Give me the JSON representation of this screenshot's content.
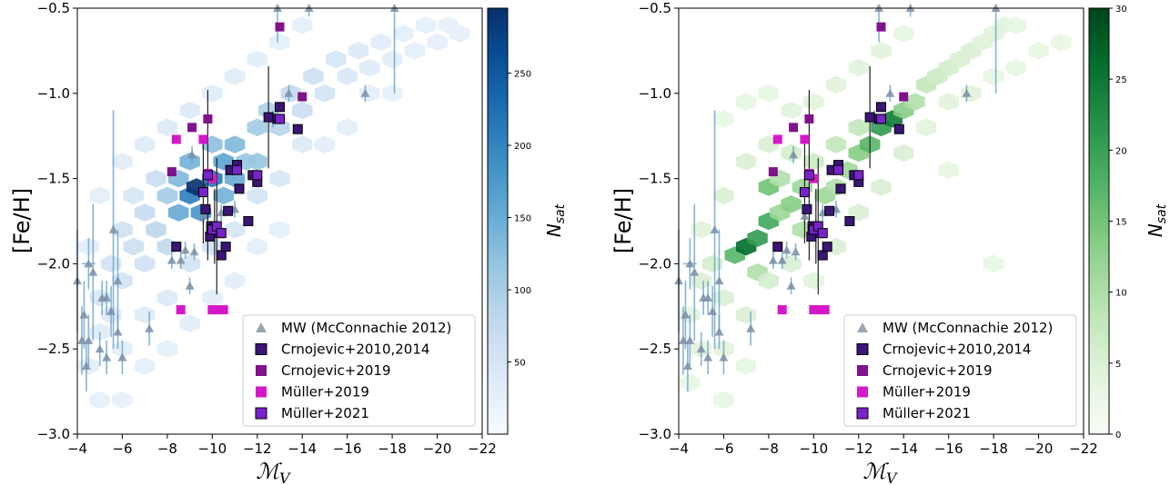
{
  "chart_data": [
    {
      "type": "scatter",
      "xlabel": "ℳ_V",
      "ylabel": "[Fe/H]",
      "xlim": [
        -4,
        -22
      ],
      "ylim": [
        -3.0,
        -0.5
      ],
      "x_ticks": [
        -4,
        -6,
        -8,
        -10,
        -12,
        -14,
        -16,
        -18,
        -20,
        -22
      ],
      "x_tick_labels": [
        "−4",
        "−6",
        "−8",
        "−10",
        "−12",
        "−14",
        "−16",
        "−18",
        "−20",
        "−22"
      ],
      "y_ticks": [
        -3.0,
        -2.5,
        -2.0,
        -1.5,
        -1.0,
        -0.5
      ],
      "y_tick_labels": [
        "−3.0",
        "−2.5",
        "−2.0",
        "−1.5",
        "−1.0",
        "−0.5"
      ],
      "colorbar": {
        "label": "N_sat",
        "colormap": "Blues",
        "range": [
          0,
          295
        ],
        "ticks": [
          50,
          100,
          150,
          200,
          250
        ],
        "tick_labels": [
          "50",
          "100",
          "150",
          "200",
          "250"
        ]
      },
      "legend": {
        "placement": "lower right",
        "entries": [
          "MW (McConnachie 2012)",
          "Crnojevic+2010,2014",
          "Crnojevic+2019",
          "Müller+2019",
          "Müller+2021"
        ]
      },
      "grid": false
    },
    {
      "type": "scatter",
      "xlabel": "ℳ_V",
      "ylabel": "[Fe/H]",
      "xlim": [
        -4,
        -22
      ],
      "ylim": [
        -3.0,
        -0.5
      ],
      "x_ticks": [
        -4,
        -6,
        -8,
        -10,
        -12,
        -14,
        -16,
        -18,
        -20,
        -22
      ],
      "x_tick_labels": [
        "−4",
        "−6",
        "−8",
        "−10",
        "−12",
        "−14",
        "−16",
        "−18",
        "−20",
        "−22"
      ],
      "y_ticks": [
        -3.0,
        -2.5,
        -2.0,
        -1.5,
        -1.0,
        -0.5
      ],
      "y_tick_labels": [
        "−3.0",
        "−2.5",
        "−2.0",
        "−1.5",
        "−1.0",
        "−0.5"
      ],
      "colorbar": {
        "label": "N_sat",
        "colormap": "Greens",
        "range": [
          0,
          30
        ],
        "ticks": [
          0,
          5,
          10,
          15,
          20,
          25,
          30
        ],
        "tick_labels": [
          "0",
          "5",
          "10",
          "15",
          "20",
          "25",
          "30"
        ]
      },
      "legend": {
        "placement": "lower right",
        "entries": [
          "MW (McConnachie 2012)",
          "Crnojevic+2010,2014",
          "Crnojevic+2019",
          "Müller+2019",
          "Müller+2021"
        ]
      },
      "grid": false
    }
  ],
  "series_styles": {
    "mw": {
      "marker": "triangle",
      "color": "#7a8fa6",
      "errorbar_color": "#6aa2cc"
    },
    "crnojevic2010": {
      "marker": "square",
      "color": "#3b1577"
    },
    "crnojevic2019": {
      "marker": "square",
      "color": "#80128a"
    },
    "muller2019": {
      "marker": "square",
      "color": "#d418c9"
    },
    "muller2021": {
      "marker": "square",
      "color": "#7a22cc"
    }
  },
  "series": {
    "mw": [
      {
        "x": -4.0,
        "y": -2.1,
        "ye": 0.3
      },
      {
        "x": -4.2,
        "y": -2.45,
        "ye": 0.2
      },
      {
        "x": -4.4,
        "y": -2.6,
        "ye": 0.15
      },
      {
        "x": -4.3,
        "y": -2.3,
        "ye": 0.2
      },
      {
        "x": -4.5,
        "y": -2.45,
        "ye": 0.15
      },
      {
        "x": -4.5,
        "y": -2.0,
        "ye": 0.15,
        "xe": 0.3
      },
      {
        "x": -4.7,
        "y": -2.05,
        "ye": 0.4
      },
      {
        "x": -5.0,
        "y": -2.5,
        "ye": 0.1
      },
      {
        "x": -5.1,
        "y": -2.2,
        "ye": 0.1
      },
      {
        "x": -5.3,
        "y": -2.55,
        "ye": 0.1
      },
      {
        "x": -5.3,
        "y": -2.2,
        "ye": 0.1
      },
      {
        "x": -5.5,
        "y": -2.28,
        "ye": 0.15
      },
      {
        "x": -5.6,
        "y": -1.8,
        "ye": 0.7
      },
      {
        "x": -5.8,
        "y": -2.1,
        "ye": 0.3
      },
      {
        "x": -5.8,
        "y": -2.4,
        "ye": 0.1
      },
      {
        "x": -6.0,
        "y": -2.55,
        "ye": 0.1
      },
      {
        "x": -7.2,
        "y": -2.38,
        "ye": 0.1
      },
      {
        "x": -8.2,
        "y": -1.98,
        "ye": 0.05
      },
      {
        "x": -8.6,
        "y": -1.98,
        "ye": 0.05
      },
      {
        "x": -8.8,
        "y": -1.92,
        "ye": 0.05
      },
      {
        "x": -9.0,
        "y": -2.13,
        "ye": 0.05
      },
      {
        "x": -9.1,
        "y": -1.36,
        "ye": 0.05
      },
      {
        "x": -9.2,
        "y": -1.93,
        "ye": 0.05
      },
      {
        "x": -9.6,
        "y": -1.72,
        "ye": 0.05
      },
      {
        "x": -10.4,
        "y": -1.7,
        "ye": 0.05
      },
      {
        "x": -11.0,
        "y": -1.68,
        "ye": 0.05
      },
      {
        "x": -12.7,
        "y": -1.15,
        "ye": 0.05
      },
      {
        "x": -13.4,
        "y": -1.0,
        "ye": 0.05
      },
      {
        "x": -14.3,
        "y": -0.5,
        "ye": 0.05
      },
      {
        "x": -16.8,
        "y": -1.0,
        "ye": 0.05
      },
      {
        "x": -18.1,
        "y": -0.5,
        "ye": 0.5
      },
      {
        "x": -12.9,
        "y": -0.5,
        "ye": 0.2
      }
    ],
    "crnojevic2010": [
      {
        "x": -8.4,
        "y": -1.9
      },
      {
        "x": -9.7,
        "y": -1.68
      },
      {
        "x": -9.9,
        "y": -1.84
      },
      {
        "x": -9.95,
        "y": -1.78
      },
      {
        "x": -10.1,
        "y": -1.78,
        "ye": 0.22
      },
      {
        "x": -10.3,
        "y": -1.82
      },
      {
        "x": -10.4,
        "y": -1.95
      },
      {
        "x": -10.6,
        "y": -1.9
      },
      {
        "x": -10.7,
        "y": -1.69
      },
      {
        "x": -10.8,
        "y": -1.45
      },
      {
        "x": -11.1,
        "y": -1.42
      },
      {
        "x": -11.2,
        "y": -1.56
      },
      {
        "x": -11.6,
        "y": -1.75
      },
      {
        "x": -11.8,
        "y": -1.48
      },
      {
        "x": -12.0,
        "y": -1.52
      },
      {
        "x": -12.5,
        "y": -1.14,
        "ye": 0.3
      },
      {
        "x": -12.9,
        "y": -1.15
      },
      {
        "x": -13.0,
        "y": -1.08
      },
      {
        "x": -13.8,
        "y": -1.21
      }
    ],
    "crnojevic2019": [
      {
        "x": -8.2,
        "y": -1.46
      },
      {
        "x": -9.1,
        "y": -1.2
      },
      {
        "x": -9.8,
        "y": -1.15
      },
      {
        "x": -13.0,
        "y": -0.61
      },
      {
        "x": -14.0,
        "y": -1.02
      }
    ],
    "muller2019": [
      {
        "x": -8.4,
        "y": -1.27
      },
      {
        "x": -8.6,
        "y": -2.27
      },
      {
        "x": -9.6,
        "y": -1.27
      },
      {
        "x": -10.0,
        "y": -2.27
      },
      {
        "x": -10.2,
        "y": -2.27
      },
      {
        "x": -10.5,
        "y": -2.27
      },
      {
        "x": -9.8,
        "y": -1.47
      },
      {
        "x": -10.0,
        "y": -1.5
      }
    ],
    "muller2021": [
      {
        "x": -9.6,
        "y": -1.58,
        "ye": 0.3
      },
      {
        "x": -9.8,
        "y": -1.48,
        "ye": 0.5
      },
      {
        "x": -10.0,
        "y": -1.8
      },
      {
        "x": -10.2,
        "y": -1.78,
        "ye": 0.4
      },
      {
        "x": -10.4,
        "y": -1.82
      },
      {
        "x": -11.1,
        "y": -1.45
      },
      {
        "x": -12.0,
        "y": -1.48
      },
      {
        "x": -13.0,
        "y": -1.15
      }
    ]
  },
  "density": {
    "blue": [
      {
        "x": -4.5,
        "y": -2.6,
        "v": 10
      },
      {
        "x": -5.0,
        "y": -2.4,
        "v": 15
      },
      {
        "x": -5.0,
        "y": -2.2,
        "v": 25
      },
      {
        "x": -5.5,
        "y": -2.0,
        "v": 35
      },
      {
        "x": -5.5,
        "y": -2.3,
        "v": 20
      },
      {
        "x": -6.0,
        "y": -1.8,
        "v": 40
      },
      {
        "x": -6.0,
        "y": -2.1,
        "v": 35
      },
      {
        "x": -6.5,
        "y": -1.9,
        "v": 45
      },
      {
        "x": -6.5,
        "y": -1.6,
        "v": 30
      },
      {
        "x": -7.0,
        "y": -1.7,
        "v": 55
      },
      {
        "x": -7.0,
        "y": -2.0,
        "v": 40
      },
      {
        "x": -7.5,
        "y": -1.5,
        "v": 50
      },
      {
        "x": -7.5,
        "y": -1.8,
        "v": 65
      },
      {
        "x": -8.0,
        "y": -1.6,
        "v": 90
      },
      {
        "x": -8.0,
        "y": -1.9,
        "v": 60
      },
      {
        "x": -8.5,
        "y": -1.5,
        "v": 120
      },
      {
        "x": -8.5,
        "y": -1.7,
        "v": 140
      },
      {
        "x": -9.0,
        "y": -1.6,
        "v": 200
      },
      {
        "x": -9.0,
        "y": -1.4,
        "v": 130
      },
      {
        "x": -9.3,
        "y": -1.55,
        "v": 295
      },
      {
        "x": -9.5,
        "y": -1.7,
        "v": 170
      },
      {
        "x": -10.0,
        "y": -1.5,
        "v": 210
      },
      {
        "x": -10.0,
        "y": -1.3,
        "v": 110
      },
      {
        "x": -10.5,
        "y": -1.4,
        "v": 150
      },
      {
        "x": -10.5,
        "y": -1.6,
        "v": 130
      },
      {
        "x": -11.0,
        "y": -1.3,
        "v": 120
      },
      {
        "x": -11.0,
        "y": -1.5,
        "v": 140
      },
      {
        "x": -11.5,
        "y": -1.4,
        "v": 100
      },
      {
        "x": -12.0,
        "y": -1.2,
        "v": 90
      },
      {
        "x": -12.0,
        "y": -1.4,
        "v": 100
      },
      {
        "x": -12.5,
        "y": -1.1,
        "v": 80
      },
      {
        "x": -13.0,
        "y": -1.2,
        "v": 70
      },
      {
        "x": -13.5,
        "y": -1.0,
        "v": 60
      },
      {
        "x": -14.0,
        "y": -1.1,
        "v": 50
      },
      {
        "x": -14.5,
        "y": -0.9,
        "v": 45
      },
      {
        "x": -15.0,
        "y": -1.0,
        "v": 35
      },
      {
        "x": -15.5,
        "y": -0.8,
        "v": 30
      },
      {
        "x": -16.0,
        "y": -0.9,
        "v": 25
      },
      {
        "x": -16.5,
        "y": -0.75,
        "v": 20
      },
      {
        "x": -17.0,
        "y": -0.85,
        "v": 15
      },
      {
        "x": -17.5,
        "y": -0.7,
        "v": 12
      },
      {
        "x": -18.0,
        "y": -0.8,
        "v": 10
      },
      {
        "x": -18.5,
        "y": -0.65,
        "v": 8
      },
      {
        "x": -19.0,
        "y": -0.75,
        "v": 6
      },
      {
        "x": -19.5,
        "y": -0.6,
        "v": 5
      },
      {
        "x": -20.0,
        "y": -0.7,
        "v": 4
      },
      {
        "x": -20.5,
        "y": -0.6,
        "v": 3
      },
      {
        "x": -21.0,
        "y": -0.65,
        "v": 2
      },
      {
        "x": -6.0,
        "y": -2.5,
        "v": 10
      },
      {
        "x": -7.0,
        "y": -2.3,
        "v": 15
      },
      {
        "x": -8.0,
        "y": -2.2,
        "v": 20
      },
      {
        "x": -9.0,
        "y": -2.0,
        "v": 35
      },
      {
        "x": -10.0,
        "y": -1.9,
        "v": 40
      },
      {
        "x": -11.0,
        "y": -1.8,
        "v": 30
      },
      {
        "x": -12.0,
        "y": -1.6,
        "v": 35
      },
      {
        "x": -13.0,
        "y": -1.5,
        "v": 25
      },
      {
        "x": -14.0,
        "y": -1.3,
        "v": 20
      },
      {
        "x": -6.0,
        "y": -1.4,
        "v": 12
      },
      {
        "x": -7.0,
        "y": -1.3,
        "v": 15
      },
      {
        "x": -8.0,
        "y": -1.2,
        "v": 20
      },
      {
        "x": -9.0,
        "y": -1.1,
        "v": 18
      },
      {
        "x": -10.0,
        "y": -1.0,
        "v": 15
      },
      {
        "x": -11.0,
        "y": -0.9,
        "v": 12
      },
      {
        "x": -12.0,
        "y": -0.8,
        "v": 10
      },
      {
        "x": -13.0,
        "y": -0.7,
        "v": 8
      },
      {
        "x": -14.0,
        "y": -0.6,
        "v": 6
      },
      {
        "x": -5.0,
        "y": -1.6,
        "v": 8
      },
      {
        "x": -4.5,
        "y": -1.9,
        "v": 10
      },
      {
        "x": -5.0,
        "y": -2.8,
        "v": 5
      },
      {
        "x": -6.0,
        "y": -2.8,
        "v": 4
      },
      {
        "x": -7.0,
        "y": -2.6,
        "v": 6
      },
      {
        "x": -8.0,
        "y": -2.5,
        "v": 8
      },
      {
        "x": -9.0,
        "y": -2.35,
        "v": 10
      },
      {
        "x": -10.0,
        "y": -2.2,
        "v": 12
      },
      {
        "x": -11.0,
        "y": -2.1,
        "v": 10
      },
      {
        "x": -12.0,
        "y": -1.9,
        "v": 8
      },
      {
        "x": -13.0,
        "y": -1.8,
        "v": 6
      },
      {
        "x": -15.0,
        "y": -1.3,
        "v": 10
      },
      {
        "x": -16.0,
        "y": -1.2,
        "v": 8
      },
      {
        "x": -17.0,
        "y": -1.0,
        "v": 6
      },
      {
        "x": -18.0,
        "y": -1.0,
        "v": 5
      }
    ],
    "green": [
      {
        "x": -4.5,
        "y": -2.3,
        "v": 2
      },
      {
        "x": -5.0,
        "y": -2.1,
        "v": 3
      },
      {
        "x": -5.5,
        "y": -2.0,
        "v": 4
      },
      {
        "x": -6.0,
        "y": -2.2,
        "v": 3
      },
      {
        "x": -6.5,
        "y": -1.95,
        "v": 16
      },
      {
        "x": -7.0,
        "y": -1.9,
        "v": 26
      },
      {
        "x": -7.5,
        "y": -1.85,
        "v": 20
      },
      {
        "x": -8.0,
        "y": -1.75,
        "v": 18
      },
      {
        "x": -8.5,
        "y": -1.7,
        "v": 10
      },
      {
        "x": -7.5,
        "y": -2.05,
        "v": 8
      },
      {
        "x": -8.0,
        "y": -1.55,
        "v": 14
      },
      {
        "x": -8.5,
        "y": -1.5,
        "v": 8
      },
      {
        "x": -9.0,
        "y": -1.65,
        "v": 12
      },
      {
        "x": -9.5,
        "y": -1.55,
        "v": 10
      },
      {
        "x": -9.5,
        "y": -1.8,
        "v": 8
      },
      {
        "x": -10.5,
        "y": -1.6,
        "v": 10
      },
      {
        "x": -11.0,
        "y": -1.55,
        "v": 8
      },
      {
        "x": -11.5,
        "y": -1.45,
        "v": 10
      },
      {
        "x": -12.0,
        "y": -1.35,
        "v": 12
      },
      {
        "x": -12.5,
        "y": -1.3,
        "v": 16
      },
      {
        "x": -13.0,
        "y": -1.2,
        "v": 20
      },
      {
        "x": -13.5,
        "y": -1.15,
        "v": 24
      },
      {
        "x": -14.0,
        "y": -1.1,
        "v": 12
      },
      {
        "x": -14.5,
        "y": -1.05,
        "v": 8
      },
      {
        "x": -15.0,
        "y": -0.95,
        "v": 6
      },
      {
        "x": -15.5,
        "y": -0.9,
        "v": 5
      },
      {
        "x": -16.0,
        "y": -0.85,
        "v": 4
      },
      {
        "x": -16.5,
        "y": -0.8,
        "v": 3
      },
      {
        "x": -17.0,
        "y": -0.75,
        "v": 3
      },
      {
        "x": -17.5,
        "y": -0.7,
        "v": 2
      },
      {
        "x": -18.0,
        "y": -0.65,
        "v": 2
      },
      {
        "x": -18.5,
        "y": -0.6,
        "v": 2
      },
      {
        "x": -19.0,
        "y": -0.6,
        "v": 1
      },
      {
        "x": -12.0,
        "y": -1.2,
        "v": 6
      },
      {
        "x": -11.0,
        "y": -1.3,
        "v": 6
      },
      {
        "x": -10.0,
        "y": -1.4,
        "v": 5
      },
      {
        "x": -9.0,
        "y": -1.35,
        "v": 4
      },
      {
        "x": -8.0,
        "y": -1.3,
        "v": 3
      },
      {
        "x": -7.0,
        "y": -1.4,
        "v": 3
      },
      {
        "x": -6.0,
        "y": -1.6,
        "v": 3
      },
      {
        "x": -5.0,
        "y": -1.8,
        "v": 2
      },
      {
        "x": -6.0,
        "y": -2.5,
        "v": 2
      },
      {
        "x": -7.0,
        "y": -2.3,
        "v": 3
      },
      {
        "x": -8.0,
        "y": -2.1,
        "v": 4
      },
      {
        "x": -9.0,
        "y": -2.0,
        "v": 3
      },
      {
        "x": -10.0,
        "y": -2.1,
        "v": 2
      },
      {
        "x": -11.0,
        "y": -1.9,
        "v": 3
      },
      {
        "x": -12.0,
        "y": -1.7,
        "v": 3
      },
      {
        "x": -13.0,
        "y": -1.55,
        "v": 3
      },
      {
        "x": -14.0,
        "y": -1.35,
        "v": 3
      },
      {
        "x": -15.0,
        "y": -1.2,
        "v": 2
      },
      {
        "x": -16.0,
        "y": -1.05,
        "v": 2
      },
      {
        "x": -17.0,
        "y": -1.0,
        "v": 2
      },
      {
        "x": -18.0,
        "y": -0.9,
        "v": 1
      },
      {
        "x": -19.0,
        "y": -0.85,
        "v": 1
      },
      {
        "x": -20.0,
        "y": -0.75,
        "v": 1
      },
      {
        "x": -21.0,
        "y": -0.7,
        "v": 1
      },
      {
        "x": -9.0,
        "y": -1.1,
        "v": 2
      },
      {
        "x": -10.0,
        "y": -1.05,
        "v": 2
      },
      {
        "x": -11.0,
        "y": -0.95,
        "v": 2
      },
      {
        "x": -12.0,
        "y": -0.85,
        "v": 2
      },
      {
        "x": -13.0,
        "y": -0.75,
        "v": 2
      },
      {
        "x": -14.0,
        "y": -0.65,
        "v": 1
      },
      {
        "x": -8.0,
        "y": -1.0,
        "v": 1
      },
      {
        "x": -7.0,
        "y": -1.05,
        "v": 1
      },
      {
        "x": -6.0,
        "y": -1.15,
        "v": 1
      },
      {
        "x": -18.0,
        "y": -2.0,
        "v": 1
      },
      {
        "x": -16.0,
        "y": -1.45,
        "v": 1
      },
      {
        "x": -5.0,
        "y": -2.5,
        "v": 2
      },
      {
        "x": -4.5,
        "y": -2.7,
        "v": 1
      },
      {
        "x": -6.0,
        "y": -2.8,
        "v": 1
      },
      {
        "x": -7.0,
        "y": -2.6,
        "v": 1
      }
    ]
  }
}
